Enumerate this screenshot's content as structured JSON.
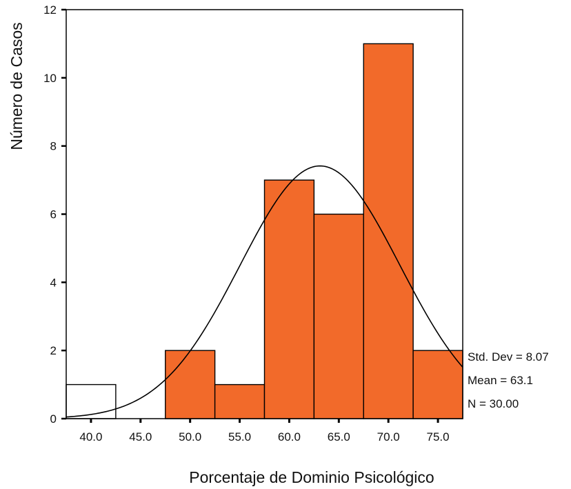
{
  "chart_data": {
    "type": "histogram",
    "xlabel": "Porcentaje de Dominio Psicológico",
    "ylabel": "Número de Casos",
    "bin_width": 5,
    "bins": [
      {
        "center": 40,
        "count": 1
      },
      {
        "center": 45,
        "count": 0
      },
      {
        "center": 50,
        "count": 2
      },
      {
        "center": 55,
        "count": 1
      },
      {
        "center": 60,
        "count": 7
      },
      {
        "center": 65,
        "count": 6
      },
      {
        "center": 70,
        "count": 11
      },
      {
        "center": 75,
        "count": 2
      }
    ],
    "x_ticks": [
      "40.0",
      "45.0",
      "50.0",
      "55.0",
      "60.0",
      "65.0",
      "70.0",
      "75.0"
    ],
    "y_ticks": [
      0,
      2,
      4,
      6,
      8,
      10,
      12
    ],
    "ylim": [
      0,
      12
    ],
    "xlim": [
      37.5,
      77.5
    ],
    "normal_curve": {
      "mean": 63.1,
      "std_dev": 8.07,
      "n": 30
    },
    "stats_labels": [
      "Std. Dev = 8.07",
      "Mean = 63.1",
      "N = 30.00"
    ],
    "colors": {
      "bar_fill": "#f26a2a",
      "bar_empty": "#ffffff",
      "curve": "#000000"
    }
  }
}
